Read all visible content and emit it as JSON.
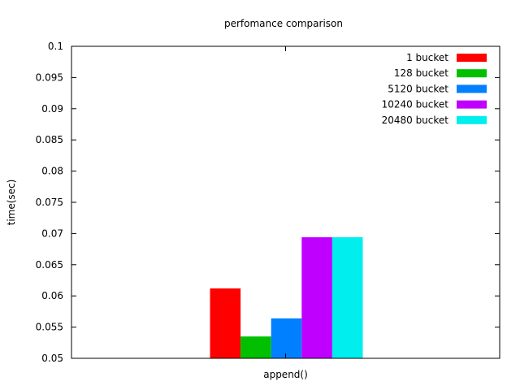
{
  "chart_data": {
    "type": "bar",
    "title": "perfomance comparison",
    "xlabel": "",
    "ylabel": "time(sec)",
    "categories": [
      "append()"
    ],
    "ylim": [
      0.05,
      0.1
    ],
    "yticks": [
      "0.05",
      "0.055",
      "0.06",
      "0.065",
      "0.07",
      "0.075",
      "0.08",
      "0.085",
      "0.09",
      "0.095",
      "0.1"
    ],
    "grid": false,
    "legend_position": "top-right",
    "series": [
      {
        "name": "1 bucket",
        "color": "#ff0000",
        "values": [
          0.0612
        ]
      },
      {
        "name": "128 bucket",
        "color": "#00c000",
        "values": [
          0.0535
        ]
      },
      {
        "name": "5120 bucket",
        "color": "#0080ff",
        "values": [
          0.0564
        ]
      },
      {
        "name": "10240 bucket",
        "color": "#c000ff",
        "values": [
          0.0694
        ]
      },
      {
        "name": "20480 bucket",
        "color": "#00eeee",
        "values": [
          0.0694
        ]
      }
    ]
  }
}
